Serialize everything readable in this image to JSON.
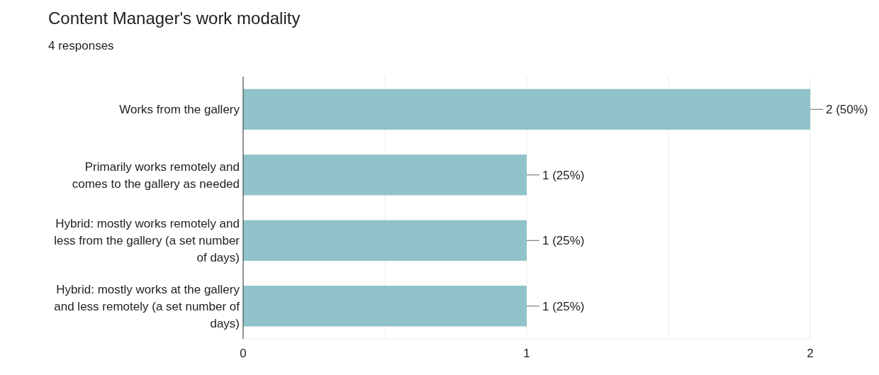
{
  "chart_data": {
    "type": "bar",
    "orientation": "horizontal",
    "title": "Content Manager's work modality",
    "subtitle": "4 responses",
    "categories": [
      "Works from the gallery",
      "Primarily works remotely and comes to the gallery as needed",
      "Hybrid: mostly works remotely and less from the gallery (a set number of days)",
      "Hybrid: mostly works at the gallery and less remotely (a set number of days)"
    ],
    "values": [
      2,
      1,
      1,
      1
    ],
    "color": "#8fc3c9",
    "value_labels": [
      "2 (50%)",
      "1 (25%)",
      "1 (25%)",
      "1 (25%)"
    ],
    "xlim": [
      0,
      2
    ],
    "xticks": [
      0,
      {
        "value": 0.5,
        "label": null
      },
      1,
      {
        "value": 1.5,
        "label": null
      },
      2
    ],
    "grid": "x"
  }
}
